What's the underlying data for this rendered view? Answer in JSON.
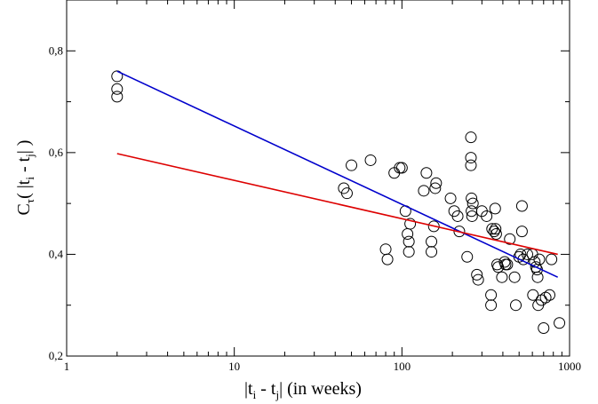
{
  "chart_data": {
    "type": "scatter",
    "title": "",
    "xscale": "log",
    "xlim": [
      1,
      1000
    ],
    "ylim": [
      0.2,
      0.9
    ],
    "xticks": [
      {
        "value": 1,
        "label": "1"
      },
      {
        "value": 10,
        "label": "10"
      },
      {
        "value": 100,
        "label": "100"
      },
      {
        "value": 1000,
        "label": "1000"
      }
    ],
    "yticks": [
      {
        "value": 0.2,
        "label": "0,2"
      },
      {
        "value": 0.4,
        "label": "0,4"
      },
      {
        "value": 0.6,
        "label": "0,6"
      },
      {
        "value": 0.8,
        "label": "0,8"
      }
    ],
    "xlabel": {
      "pre": "|t",
      "sub1": "i",
      "mid": " - t",
      "sub2": "j",
      "post": "|  (in weeks)"
    },
    "ylabel": {
      "pre": "C",
      "sub1": "τ",
      "mid1": "( |t",
      "sub2": "i",
      "mid2": " - t",
      "sub3": "j",
      "post": "| )"
    },
    "grid": false,
    "series": [
      {
        "kind": "scatter",
        "marker": "open-circle",
        "color": "#000000",
        "points": [
          [
            2,
            0.75
          ],
          [
            2,
            0.725
          ],
          [
            2,
            0.71
          ],
          [
            45,
            0.53
          ],
          [
            47,
            0.52
          ],
          [
            50,
            0.575
          ],
          [
            65,
            0.585
          ],
          [
            80,
            0.41
          ],
          [
            82,
            0.39
          ],
          [
            90,
            0.56
          ],
          [
            97,
            0.57
          ],
          [
            100,
            0.57
          ],
          [
            105,
            0.485
          ],
          [
            108,
            0.44
          ],
          [
            110,
            0.425
          ],
          [
            110,
            0.405
          ],
          [
            112,
            0.46
          ],
          [
            135,
            0.525
          ],
          [
            140,
            0.56
          ],
          [
            150,
            0.425
          ],
          [
            150,
            0.405
          ],
          [
            155,
            0.455
          ],
          [
            158,
            0.53
          ],
          [
            160,
            0.54
          ],
          [
            195,
            0.51
          ],
          [
            205,
            0.485
          ],
          [
            215,
            0.475
          ],
          [
            220,
            0.445
          ],
          [
            245,
            0.395
          ],
          [
            258,
            0.63
          ],
          [
            258,
            0.59
          ],
          [
            258,
            0.575
          ],
          [
            260,
            0.51
          ],
          [
            260,
            0.485
          ],
          [
            262,
            0.475
          ],
          [
            265,
            0.5
          ],
          [
            280,
            0.36
          ],
          [
            285,
            0.35
          ],
          [
            300,
            0.485
          ],
          [
            320,
            0.475
          ],
          [
            340,
            0.32
          ],
          [
            340,
            0.3
          ],
          [
            345,
            0.45
          ],
          [
            355,
            0.445
          ],
          [
            360,
            0.49
          ],
          [
            362,
            0.45
          ],
          [
            365,
            0.44
          ],
          [
            370,
            0.38
          ],
          [
            375,
            0.375
          ],
          [
            395,
            0.355
          ],
          [
            410,
            0.385
          ],
          [
            415,
            0.38
          ],
          [
            425,
            0.38
          ],
          [
            440,
            0.43
          ],
          [
            470,
            0.355
          ],
          [
            478,
            0.3
          ],
          [
            500,
            0.395
          ],
          [
            510,
            0.4
          ],
          [
            520,
            0.495
          ],
          [
            520,
            0.445
          ],
          [
            530,
            0.39
          ],
          [
            560,
            0.4
          ],
          [
            600,
            0.4
          ],
          [
            605,
            0.32
          ],
          [
            620,
            0.385
          ],
          [
            630,
            0.375
          ],
          [
            640,
            0.37
          ],
          [
            645,
            0.355
          ],
          [
            650,
            0.3
          ],
          [
            660,
            0.39
          ],
          [
            680,
            0.31
          ],
          [
            700,
            0.255
          ],
          [
            720,
            0.315
          ],
          [
            760,
            0.32
          ],
          [
            780,
            0.39
          ],
          [
            870,
            0.265
          ]
        ]
      },
      {
        "kind": "line",
        "color": "#0000cc",
        "points": [
          [
            2,
            0.76
          ],
          [
            850,
            0.355
          ]
        ]
      },
      {
        "kind": "line",
        "color": "#dd0000",
        "points": [
          [
            2,
            0.598
          ],
          [
            850,
            0.4
          ]
        ]
      }
    ]
  }
}
